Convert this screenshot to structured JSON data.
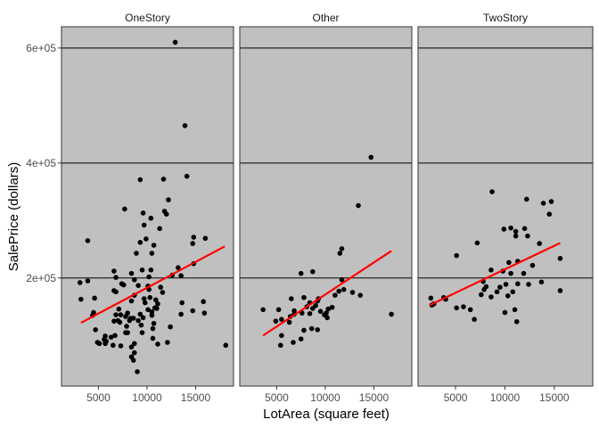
{
  "chart_data": {
    "type": "scatter",
    "title": "",
    "xlabel": "LotArea (square feet)",
    "ylabel": "SalePrice (dollars)",
    "xlim": [
      1200,
      18900
    ],
    "ylim": [
      12000,
      637000
    ],
    "xticks": [
      5000,
      10000,
      15000
    ],
    "xtick_labels": [
      "5000",
      "10000",
      "15000"
    ],
    "yticks": [
      200000,
      400000,
      600000
    ],
    "ytick_labels": [
      "2e+05",
      "4e+05",
      "6e+05"
    ],
    "grid": "major-y",
    "colors": {
      "panel": "#c0c0c0",
      "grid": "#000000",
      "points": "#000000",
      "trend": "#ff0000"
    },
    "panels": [
      {
        "name": "OneStory",
        "trend": {
          "x": [
            3200,
            18000
          ],
          "y": [
            122000,
            255000
          ]
        },
        "points": [
          [
            12900,
            610000
          ],
          [
            13900,
            465000
          ],
          [
            14100,
            377000
          ],
          [
            11700,
            372000
          ],
          [
            9300,
            371000
          ],
          [
            12200,
            336000
          ],
          [
            7700,
            320000
          ],
          [
            11800,
            316000
          ],
          [
            9600,
            313000
          ],
          [
            12000,
            311000
          ],
          [
            10400,
            304000
          ],
          [
            9700,
            292000
          ],
          [
            11300,
            286000
          ],
          [
            3900,
            265000
          ],
          [
            14800,
            271000
          ],
          [
            16000,
            269000
          ],
          [
            9900,
            268000
          ],
          [
            14700,
            260000
          ],
          [
            10700,
            257000
          ],
          [
            9300,
            262000
          ],
          [
            8900,
            243000
          ],
          [
            10500,
            243000
          ],
          [
            14800,
            225000
          ],
          [
            13200,
            218000
          ],
          [
            10400,
            214000
          ],
          [
            9500,
            214000
          ],
          [
            6600,
            212000
          ],
          [
            8400,
            208000
          ],
          [
            6800,
            201000
          ],
          [
            12600,
            205000
          ],
          [
            10200,
            202000
          ],
          [
            13500,
            204000
          ],
          [
            8700,
            197000
          ],
          [
            7400,
            190000
          ],
          [
            3100,
            192000
          ],
          [
            3900,
            195000
          ],
          [
            7600,
            188000
          ],
          [
            9100,
            187000
          ],
          [
            10100,
            186000
          ],
          [
            11400,
            184000
          ],
          [
            10200,
            180000
          ],
          [
            6800,
            176000
          ],
          [
            6600,
            178000
          ],
          [
            11600,
            175000
          ],
          [
            8700,
            170000
          ],
          [
            10300,
            166000
          ],
          [
            4600,
            165000
          ],
          [
            3200,
            163000
          ],
          [
            9700,
            164000
          ],
          [
            10900,
            162000
          ],
          [
            8400,
            160000
          ],
          [
            9800,
            157000
          ],
          [
            15800,
            159000
          ],
          [
            11100,
            155000
          ],
          [
            13600,
            157000
          ],
          [
            10800,
            148000
          ],
          [
            11000,
            147000
          ],
          [
            10100,
            145000
          ],
          [
            7100,
            146000
          ],
          [
            14700,
            143000
          ],
          [
            10500,
            141000
          ],
          [
            4500,
            140000
          ],
          [
            8000,
            139000
          ],
          [
            9300,
            137000
          ],
          [
            13500,
            137000
          ],
          [
            15900,
            139000
          ],
          [
            4400,
            135000
          ],
          [
            6800,
            136000
          ],
          [
            7300,
            136000
          ],
          [
            10500,
            135000
          ],
          [
            7800,
            133000
          ],
          [
            8300,
            130000
          ],
          [
            8600,
            130000
          ],
          [
            9600,
            131000
          ],
          [
            8200,
            126000
          ],
          [
            9100,
            126000
          ],
          [
            7000,
            126000
          ],
          [
            6600,
            125000
          ],
          [
            7200,
            123000
          ],
          [
            10700,
            121000
          ],
          [
            7900,
            116000
          ],
          [
            9400,
            118000
          ],
          [
            12400,
            115000
          ],
          [
            4700,
            110000
          ],
          [
            7800,
            105000
          ],
          [
            8000,
            105000
          ],
          [
            10600,
            112000
          ],
          [
            9500,
            105000
          ],
          [
            6300,
            97000
          ],
          [
            12100,
            88000
          ],
          [
            6700,
            100000
          ],
          [
            5700,
            99000
          ],
          [
            10600,
            95000
          ],
          [
            5600,
            93000
          ],
          [
            5800,
            90000
          ],
          [
            4900,
            88000
          ],
          [
            5700,
            86000
          ],
          [
            8700,
            86000
          ],
          [
            11100,
            85000
          ],
          [
            6500,
            83000
          ],
          [
            18100,
            83000
          ],
          [
            7300,
            82000
          ],
          [
            8400,
            80000
          ],
          [
            5100,
            86000
          ],
          [
            8700,
            70000
          ],
          [
            8400,
            63000
          ],
          [
            8600,
            57000
          ],
          [
            9000,
            37000
          ]
        ]
      },
      {
        "name": "Other",
        "trend": {
          "x": [
            3600,
            16800
          ],
          "y": [
            100000,
            247000
          ]
        },
        "points": [
          [
            14700,
            410000
          ],
          [
            13400,
            326000
          ],
          [
            11700,
            251000
          ],
          [
            11500,
            243000
          ],
          [
            7500,
            208000
          ],
          [
            8700,
            211000
          ],
          [
            11700,
            197000
          ],
          [
            11900,
            180000
          ],
          [
            11400,
            177000
          ],
          [
            12800,
            175000
          ],
          [
            13600,
            170000
          ],
          [
            11000,
            170000
          ],
          [
            7800,
            166000
          ],
          [
            6500,
            164000
          ],
          [
            9300,
            164000
          ],
          [
            9200,
            160000
          ],
          [
            8400,
            157000
          ],
          [
            9000,
            152000
          ],
          [
            8100,
            150000
          ],
          [
            10700,
            149000
          ],
          [
            8700,
            147000
          ],
          [
            10300,
            146000
          ],
          [
            3600,
            145000
          ],
          [
            5200,
            145000
          ],
          [
            6800,
            143000
          ],
          [
            9500,
            142000
          ],
          [
            10100,
            139000
          ],
          [
            7600,
            139000
          ],
          [
            8400,
            138000
          ],
          [
            6800,
            137000
          ],
          [
            9900,
            136000
          ],
          [
            16800,
            137000
          ],
          [
            6400,
            133000
          ],
          [
            10200,
            131000
          ],
          [
            5500,
            128000
          ],
          [
            4900,
            125000
          ],
          [
            6300,
            123000
          ],
          [
            8600,
            112000
          ],
          [
            7800,
            109000
          ],
          [
            9200,
            110000
          ],
          [
            5500,
            100000
          ],
          [
            7500,
            94000
          ],
          [
            6700,
            88000
          ],
          [
            5400,
            83000
          ]
        ]
      },
      {
        "name": "TwoStory",
        "trend": {
          "x": [
            2400,
            15600
          ],
          "y": [
            153000,
            261000
          ]
        },
        "points": [
          [
            8700,
            350000
          ],
          [
            12200,
            337000
          ],
          [
            13900,
            330000
          ],
          [
            14700,
            333000
          ],
          [
            14500,
            311000
          ],
          [
            10600,
            287000
          ],
          [
            11100,
            281000
          ],
          [
            9900,
            285000
          ],
          [
            12000,
            286000
          ],
          [
            11100,
            273000
          ],
          [
            12300,
            273000
          ],
          [
            7200,
            261000
          ],
          [
            13500,
            260000
          ],
          [
            5100,
            239000
          ],
          [
            15600,
            234000
          ],
          [
            10400,
            227000
          ],
          [
            11300,
            229000
          ],
          [
            12800,
            222000
          ],
          [
            8600,
            214000
          ],
          [
            9800,
            212000
          ],
          [
            10600,
            208000
          ],
          [
            11900,
            208000
          ],
          [
            13700,
            193000
          ],
          [
            7800,
            194000
          ],
          [
            10100,
            189000
          ],
          [
            11300,
            190000
          ],
          [
            12400,
            189000
          ],
          [
            8100,
            185000
          ],
          [
            9500,
            184000
          ],
          [
            7900,
            180000
          ],
          [
            15600,
            178000
          ],
          [
            9200,
            176000
          ],
          [
            10800,
            176000
          ],
          [
            7600,
            171000
          ],
          [
            10300,
            169000
          ],
          [
            8600,
            167000
          ],
          [
            3800,
            166000
          ],
          [
            4000,
            163000
          ],
          [
            2500,
            165000
          ],
          [
            2800,
            155000
          ],
          [
            2600,
            153000
          ],
          [
            5800,
            150000
          ],
          [
            5100,
            148000
          ],
          [
            6500,
            145000
          ],
          [
            11000,
            145000
          ],
          [
            10000,
            140000
          ],
          [
            6900,
            128000
          ],
          [
            11200,
            124000
          ]
        ]
      }
    ]
  }
}
